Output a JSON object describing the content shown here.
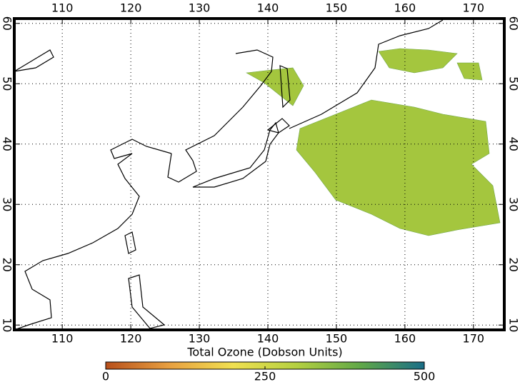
{
  "chart_data": {
    "type": "map",
    "xlim": [
      103,
      174.5
    ],
    "ylim": [
      9.2,
      60.8
    ],
    "xticks": [
      110,
      120,
      130,
      140,
      150,
      160,
      170
    ],
    "yticks": [
      10,
      20,
      30,
      40,
      50,
      60
    ],
    "grid": true,
    "colorbar": {
      "title": "Total Ozone (Dobson Units)",
      "lim": [
        0,
        500
      ],
      "ticks": [
        0,
        250,
        500
      ],
      "colors": [
        "#b8501c",
        "#e8a040",
        "#f0e050",
        "#b4d040",
        "#60a848",
        "#1a6e88"
      ]
    }
  }
}
